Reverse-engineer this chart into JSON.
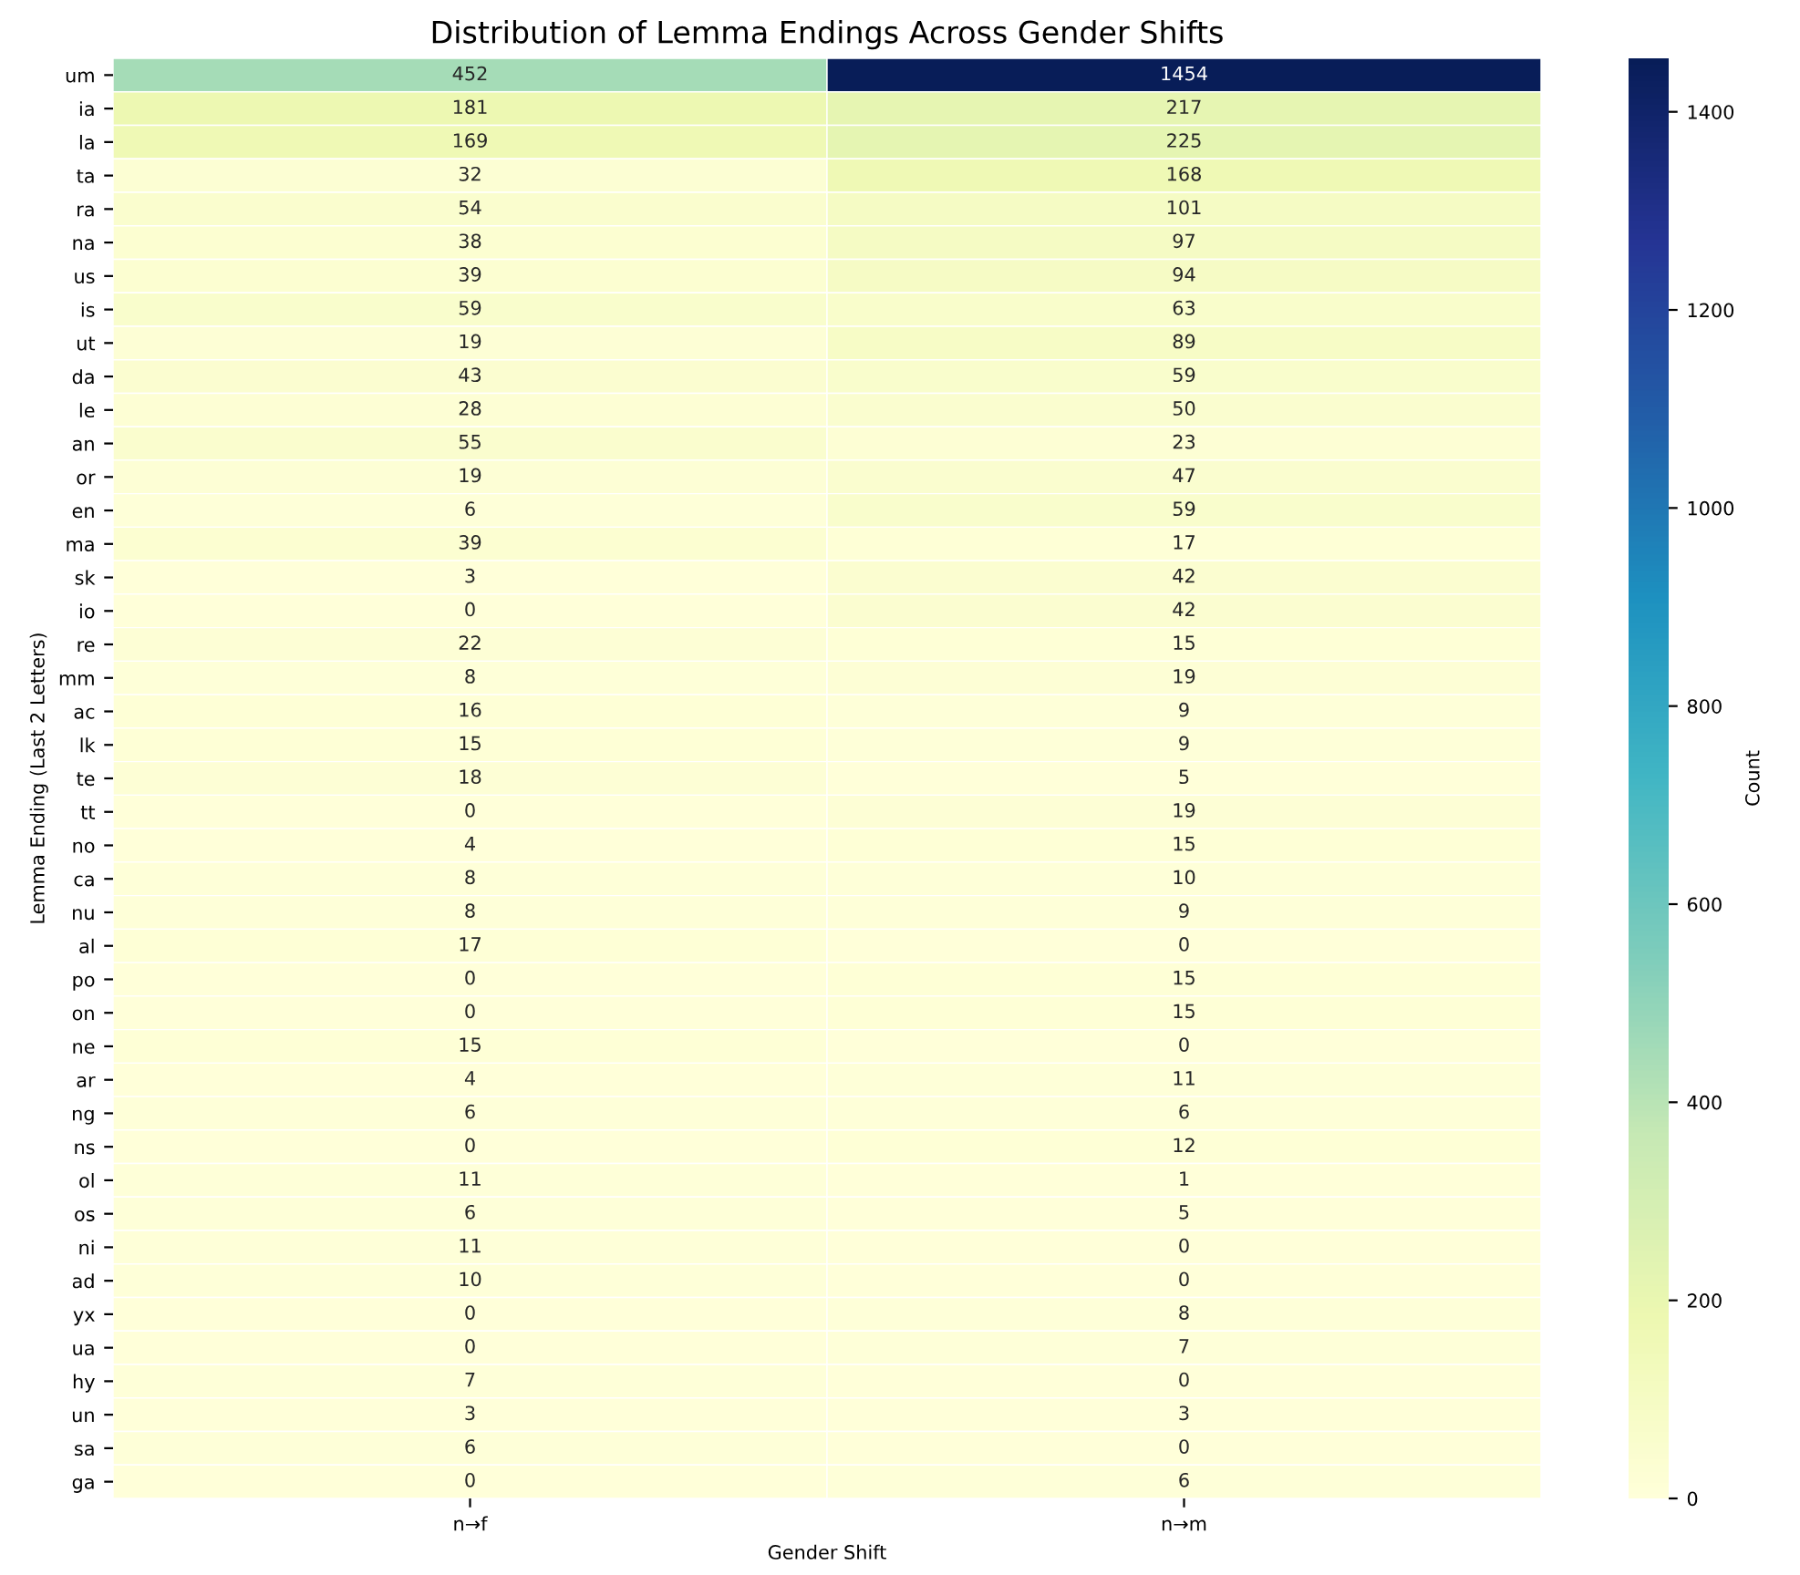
{
  "chart_data": {
    "type": "heatmap",
    "title": "Distribution of Lemma Endings Across Gender Shifts",
    "xlabel": "Gender Shift",
    "ylabel": "Lemma Ending (Last 2 Letters)",
    "clabel": "Count",
    "categories": [
      "n→f",
      "n→m"
    ],
    "y_categories": [
      "um",
      "ia",
      "la",
      "ta",
      "ra",
      "na",
      "us",
      "is",
      "ut",
      "da",
      "le",
      "an",
      "or",
      "en",
      "ma",
      "sk",
      "io",
      "re",
      "mm",
      "ac",
      "lk",
      "te",
      "tt",
      "no",
      "ca",
      "nu",
      "al",
      "po",
      "on",
      "ne",
      "ar",
      "ng",
      "ns",
      "ol",
      "os",
      "ni",
      "ad",
      "yx",
      "ua",
      "hy",
      "un",
      "sa",
      "ga"
    ],
    "cells": [
      [
        452,
        1454
      ],
      [
        181,
        217
      ],
      [
        169,
        225
      ],
      [
        32,
        168
      ],
      [
        54,
        101
      ],
      [
        38,
        97
      ],
      [
        39,
        94
      ],
      [
        59,
        63
      ],
      [
        19,
        89
      ],
      [
        43,
        59
      ],
      [
        28,
        50
      ],
      [
        55,
        23
      ],
      [
        19,
        47
      ],
      [
        6,
        59
      ],
      [
        39,
        17
      ],
      [
        3,
        42
      ],
      [
        0,
        42
      ],
      [
        22,
        15
      ],
      [
        8,
        19
      ],
      [
        16,
        9
      ],
      [
        15,
        9
      ],
      [
        18,
        5
      ],
      [
        0,
        19
      ],
      [
        4,
        15
      ],
      [
        8,
        10
      ],
      [
        8,
        9
      ],
      [
        17,
        0
      ],
      [
        0,
        15
      ],
      [
        0,
        15
      ],
      [
        15,
        0
      ],
      [
        4,
        11
      ],
      [
        6,
        6
      ],
      [
        0,
        12
      ],
      [
        11,
        1
      ],
      [
        6,
        5
      ],
      [
        11,
        0
      ],
      [
        10,
        0
      ],
      [
        0,
        8
      ],
      [
        0,
        7
      ],
      [
        7,
        0
      ],
      [
        3,
        3
      ],
      [
        6,
        0
      ],
      [
        0,
        6
      ]
    ],
    "data_labels": true,
    "clim": [
      0,
      1454
    ],
    "cticks": [
      0,
      200,
      400,
      600,
      800,
      1000,
      1200,
      1400
    ]
  }
}
